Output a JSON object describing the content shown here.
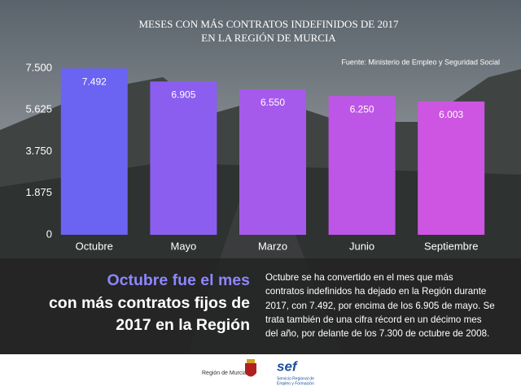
{
  "chart_data": {
    "type": "bar",
    "title_lines": [
      "MESES CON MÁS CONTRATOS INDEFINIDOS DE 2017",
      "EN LA REGIÓN DE MURCIA"
    ],
    "source": "Fuente: Ministerio de Empleo y Seguridad Social",
    "categories": [
      "Octubre",
      "Mayo",
      "Marzo",
      "Junio",
      "Septiembre"
    ],
    "values": [
      7492,
      6905,
      6550,
      6250,
      6003
    ],
    "value_labels": [
      "7.492",
      "6.905",
      "6.550",
      "6.250",
      "6.003"
    ],
    "colors": [
      "#6b63f2",
      "#8b5ef0",
      "#a65aeb",
      "#bd56e6",
      "#cd55e1"
    ],
    "ylim": [
      0,
      7500
    ],
    "yticks": [
      0,
      {
        "value": 1875,
        "label": "1.875"
      },
      {
        "value": 3750,
        "label": "3.750"
      },
      {
        "value": 5625,
        "label": "5.625"
      },
      {
        "value": 7500,
        "label": "7.500"
      }
    ],
    "grid": false
  },
  "headline": [
    "Octubre fue el mes",
    "con más contratos fijos de",
    "2017 en la Región"
  ],
  "paragraph": [
    "Octubre se ha convertido en el mes que más",
    "contratos indefinidos ha dejado en la Región durante",
    "2017, con 7.492, por encima de los 6.905 de mayo. Se",
    "trata también de una cifra récord en un décimo mes",
    "del año, por delante de los 7.300 de octubre de 2008."
  ],
  "footer": {
    "logo1": "Región de Murcia",
    "logo2_mark": "sef",
    "logo2_text": [
      "Servicio Regional de",
      "Empleo y Formación"
    ]
  }
}
